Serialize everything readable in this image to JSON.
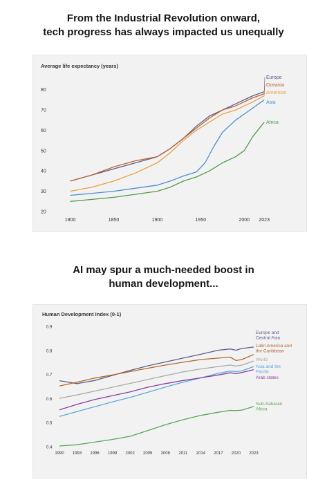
{
  "headline_top": {
    "line1": "From the Industrial Revolution onward,",
    "line2": "tech progress has always impacted us unequally"
  },
  "headline_bottom": {
    "line1": "AI may spur a much-needed boost in",
    "line2": "human development..."
  },
  "colors": {
    "europe": "#5b5e8a",
    "oceania": "#b8623a",
    "americas": "#e8a040",
    "asia": "#4a8fcf",
    "africa": "#4e9a4a",
    "latam": "#b5652a",
    "world": "#a9a9a9",
    "asia_pacific": "#5ba8db",
    "arab": "#8b3d9e",
    "ssa": "#5aa55a"
  },
  "chart_data": [
    {
      "type": "line",
      "title": "Average life expectancy (years)",
      "x_ticks": [
        "1800",
        "1850",
        "1900",
        "1950",
        "2000",
        "2023"
      ],
      "y_ticks": [
        "20",
        "30",
        "40",
        "50",
        "60",
        "70",
        "80"
      ],
      "xlim": [
        1790,
        2030
      ],
      "ylim": [
        20,
        85
      ],
      "grid": false,
      "legend": "end-of-line labels",
      "series": [
        {
          "name": "Europe",
          "color_key": "europe",
          "x": [
            1800,
            1825,
            1850,
            1875,
            1900,
            1915,
            1930,
            1945,
            1960,
            1975,
            1990,
            2000,
            2010,
            2023
          ],
          "y": [
            35,
            38,
            41,
            44,
            47,
            51,
            56,
            62,
            67,
            70,
            73,
            75,
            77,
            79
          ]
        },
        {
          "name": "Oceania",
          "color_key": "oceania",
          "x": [
            1800,
            1825,
            1850,
            1875,
            1900,
            1915,
            1930,
            1945,
            1960,
            1975,
            1990,
            2000,
            2010,
            2023
          ],
          "y": [
            35,
            38,
            42,
            45,
            47,
            51,
            56,
            61,
            66,
            70,
            72,
            74,
            76,
            78
          ]
        },
        {
          "name": "Americas",
          "color_key": "americas",
          "x": [
            1800,
            1825,
            1850,
            1875,
            1900,
            1915,
            1930,
            1945,
            1960,
            1975,
            1990,
            2000,
            2010,
            2023
          ],
          "y": [
            30,
            32,
            35,
            39,
            44,
            49,
            55,
            60,
            64,
            68,
            70,
            72,
            74,
            77
          ]
        },
        {
          "name": "Asia",
          "color_key": "asia",
          "x": [
            1800,
            1825,
            1850,
            1875,
            1900,
            1915,
            1930,
            1945,
            1955,
            1965,
            1975,
            1990,
            2000,
            2010,
            2023
          ],
          "y": [
            28,
            29,
            30,
            31.5,
            33,
            35,
            37.5,
            39.5,
            44,
            52,
            59,
            65,
            68,
            71,
            75
          ]
        },
        {
          "name": "Africa",
          "color_key": "africa",
          "x": [
            1800,
            1825,
            1850,
            1875,
            1900,
            1915,
            1930,
            1945,
            1960,
            1975,
            1990,
            2000,
            2010,
            2023
          ],
          "y": [
            25,
            26,
            27,
            28.5,
            30,
            32,
            35,
            37,
            40,
            44,
            47,
            50,
            57,
            64
          ]
        }
      ]
    },
    {
      "type": "line",
      "title": "Human Development Index (0-1)",
      "x_ticks": [
        "1990",
        "1993",
        "1996",
        "1999",
        "2002",
        "2005",
        "2008",
        "2011",
        "2014",
        "2017",
        "2020",
        "2023"
      ],
      "y_ticks": [
        "0.4",
        "0.5",
        "0.6",
        "0.7",
        "0.8",
        "0.9"
      ],
      "xlim": [
        1990,
        2023
      ],
      "ylim": [
        0.4,
        0.9
      ],
      "grid": false,
      "legend": "end-of-line labels",
      "series": [
        {
          "name": "Europe and Central Asia",
          "label_lines": [
            "Europe and",
            "Central Asia"
          ],
          "color_key": "europe",
          "x": [
            1990,
            1993,
            1996,
            1999,
            2002,
            2005,
            2008,
            2011,
            2014,
            2017,
            2019,
            2020,
            2021,
            2023
          ],
          "y": [
            0.674,
            0.662,
            0.675,
            0.696,
            0.717,
            0.736,
            0.752,
            0.768,
            0.784,
            0.801,
            0.806,
            0.801,
            0.808,
            0.814
          ]
        },
        {
          "name": "Latin America and the Caribbean",
          "label_lines": [
            "Latin America and",
            "the Caribbean"
          ],
          "color_key": "latam",
          "x": [
            1990,
            1993,
            1996,
            1999,
            2002,
            2005,
            2008,
            2011,
            2014,
            2017,
            2019,
            2020,
            2021,
            2023
          ],
          "y": [
            0.652,
            0.668,
            0.685,
            0.698,
            0.712,
            0.726,
            0.739,
            0.751,
            0.762,
            0.768,
            0.772,
            0.758,
            0.762,
            0.783
          ]
        },
        {
          "name": "World",
          "label_lines": [
            "World"
          ],
          "color_key": "world",
          "x": [
            1990,
            1993,
            1996,
            1999,
            2002,
            2005,
            2008,
            2011,
            2014,
            2017,
            2019,
            2020,
            2021,
            2023
          ],
          "y": [
            0.601,
            0.615,
            0.631,
            0.647,
            0.663,
            0.679,
            0.695,
            0.711,
            0.723,
            0.733,
            0.739,
            0.735,
            0.739,
            0.756
          ]
        },
        {
          "name": "Asia and the Pacific",
          "label_lines": [
            "Asia and the",
            "Pacific"
          ],
          "color_key": "asia_pacific",
          "x": [
            1990,
            1993,
            1996,
            1999,
            2002,
            2005,
            2008,
            2011,
            2014,
            2017,
            2019,
            2020,
            2021,
            2023
          ],
          "y": [
            0.526,
            0.546,
            0.566,
            0.586,
            0.605,
            0.626,
            0.648,
            0.668,
            0.686,
            0.705,
            0.714,
            0.712,
            0.715,
            0.733
          ]
        },
        {
          "name": "Arab states",
          "label_lines": [
            "Arab states"
          ],
          "color_key": "arab",
          "x": [
            1990,
            1993,
            1996,
            1999,
            2002,
            2005,
            2008,
            2011,
            2014,
            2017,
            2019,
            2020,
            2021,
            2023
          ],
          "y": [
            0.553,
            0.576,
            0.596,
            0.612,
            0.628,
            0.647,
            0.662,
            0.675,
            0.686,
            0.698,
            0.707,
            0.704,
            0.708,
            0.72
          ]
        },
        {
          "name": "Sub-Saharan Africa",
          "label_lines": [
            "Sub-Saharan",
            "Africa"
          ],
          "color_key": "ssa",
          "x": [
            1990,
            1993,
            1996,
            1999,
            2002,
            2005,
            2008,
            2011,
            2014,
            2017,
            2019,
            2020,
            2021,
            2023
          ],
          "y": [
            0.403,
            0.408,
            0.419,
            0.43,
            0.443,
            0.467,
            0.491,
            0.512,
            0.53,
            0.543,
            0.551,
            0.55,
            0.552,
            0.567
          ]
        }
      ]
    }
  ]
}
